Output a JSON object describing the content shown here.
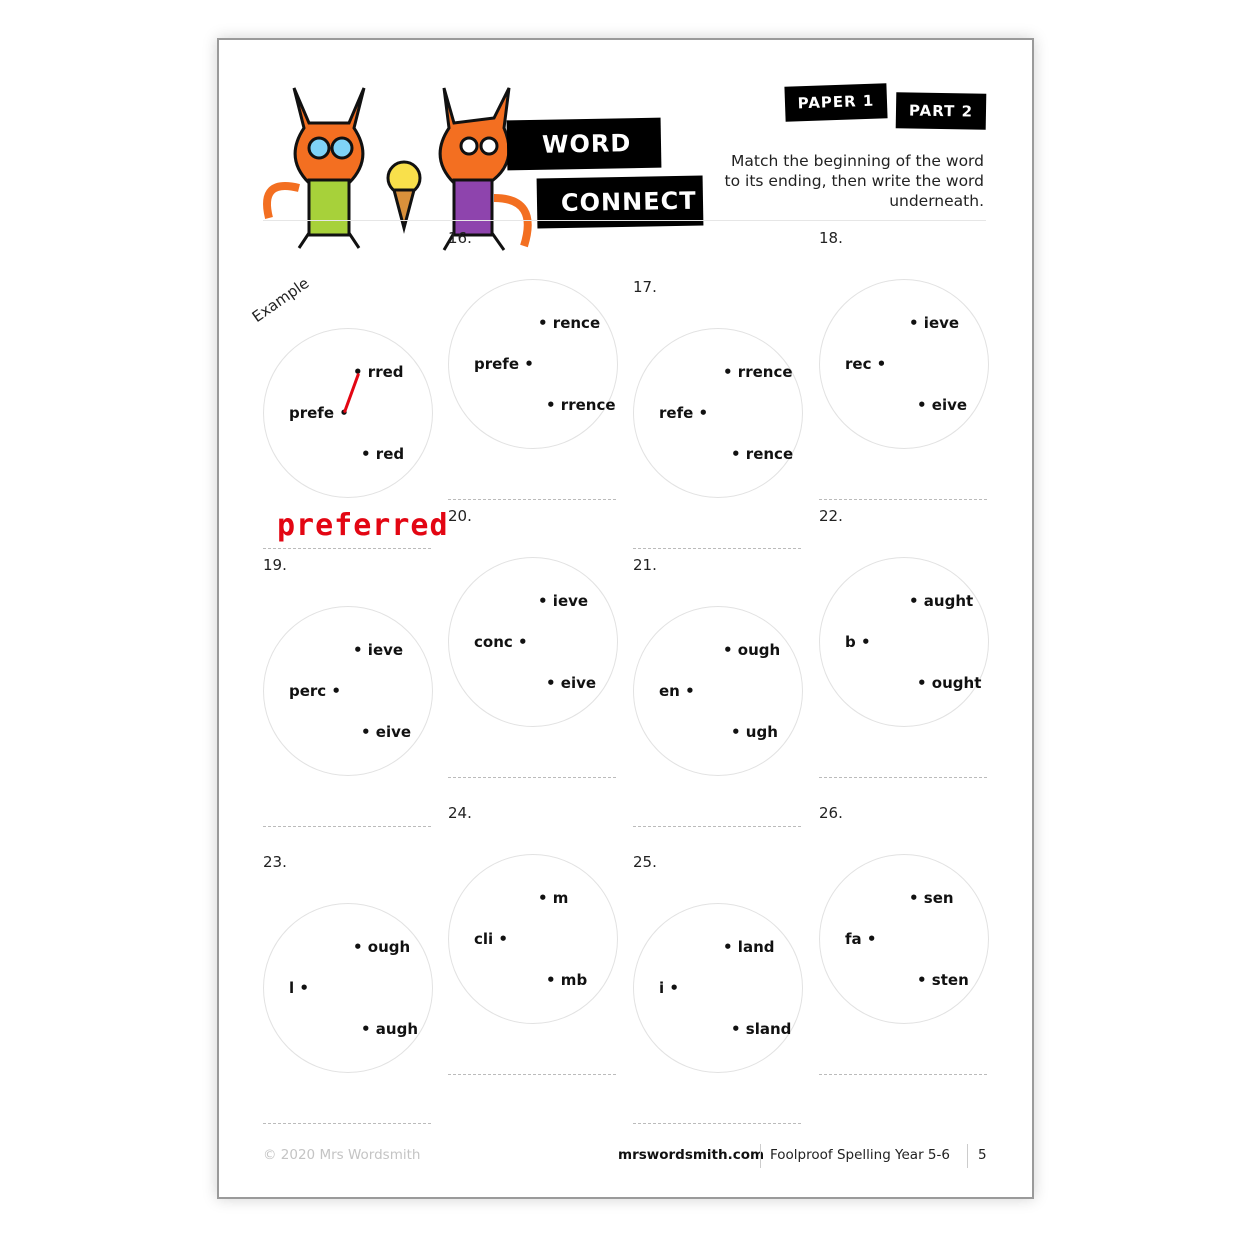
{
  "header": {
    "title_line1": "WORD",
    "title_line2": "CONNECT",
    "paper": "PAPER 1",
    "part": "PART 2",
    "instructions": "Match the beginning of the word to its ending, then write the word underneath."
  },
  "example": {
    "label": "Example",
    "beginning": "prefe",
    "endings": [
      "rred",
      "red"
    ],
    "answer": "preferred",
    "answer_color": "#e30613"
  },
  "questions": [
    {
      "num": "16.",
      "beginning": "prefe",
      "endings": [
        "rence",
        "rrence"
      ]
    },
    {
      "num": "17.",
      "beginning": "refe",
      "endings": [
        "rrence",
        "rence"
      ]
    },
    {
      "num": "18.",
      "beginning": "rec",
      "endings": [
        "ieve",
        "eive"
      ]
    },
    {
      "num": "19.",
      "beginning": "perc",
      "endings": [
        "ieve",
        "eive"
      ]
    },
    {
      "num": "20.",
      "beginning": "conc",
      "endings": [
        "ieve",
        "eive"
      ]
    },
    {
      "num": "21.",
      "beginning": "en",
      "endings": [
        "ough",
        "ugh"
      ]
    },
    {
      "num": "22.",
      "beginning": "b",
      "endings": [
        "aught",
        "ought"
      ]
    },
    {
      "num": "23.",
      "beginning": "l",
      "endings": [
        "ough",
        "augh"
      ]
    },
    {
      "num": "24.",
      "beginning": "cli",
      "endings": [
        "m",
        "mb"
      ]
    },
    {
      "num": "25.",
      "beginning": "i",
      "endings": [
        "land",
        "sland"
      ]
    },
    {
      "num": "26.",
      "beginning": "fa",
      "endings": [
        "sen",
        "sten"
      ]
    }
  ],
  "footer": {
    "copyright": "© 2020 Mrs Wordsmith",
    "site": "mrswordsmith.com",
    "book": "Foolproof Spelling Year 5-6",
    "page": "5"
  }
}
